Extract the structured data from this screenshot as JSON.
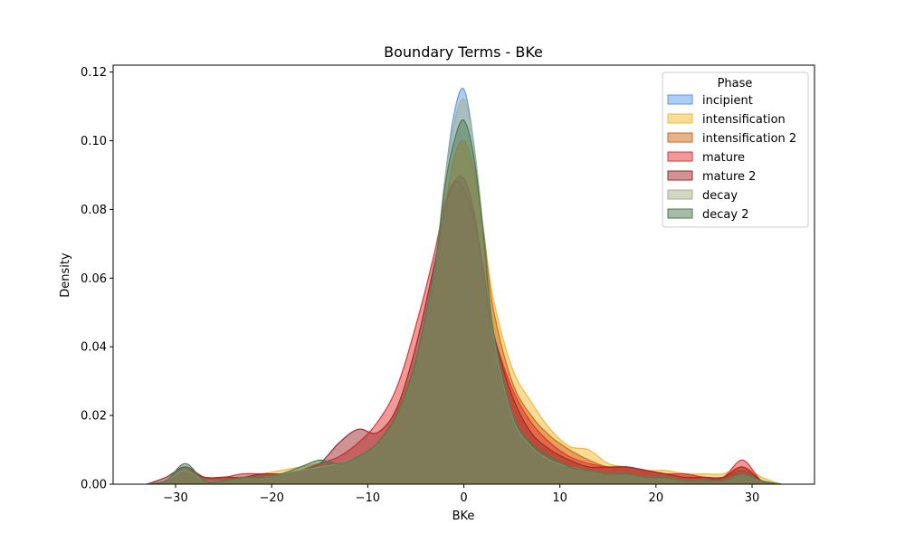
{
  "chart_data": {
    "type": "area",
    "title": "Boundary Terms - BKe",
    "xlabel": "BKe",
    "ylabel": "Density",
    "xlim": [
      -36.5,
      36.5
    ],
    "ylim": [
      0,
      0.122
    ],
    "xticks": [
      -30,
      -20,
      -10,
      0,
      10,
      20,
      30
    ],
    "yticks": [
      0.0,
      0.02,
      0.04,
      0.06,
      0.08,
      0.1,
      0.12
    ],
    "ytick_labels": [
      "0.00",
      "0.02",
      "0.04",
      "0.06",
      "0.08",
      "0.10",
      "0.12"
    ],
    "grid": false,
    "legend": {
      "title": "Phase",
      "placement": "top-right"
    },
    "x": [
      -33,
      -31,
      -29,
      -27,
      -25,
      -23,
      -21,
      -19,
      -17,
      -15,
      -13,
      -11,
      -9,
      -7,
      -5,
      -3,
      -2,
      -1,
      0,
      1,
      2,
      3,
      5,
      7,
      9,
      11,
      13,
      15,
      17,
      19,
      21,
      23,
      25,
      27,
      29,
      31,
      33
    ],
    "series": [
      {
        "name": "incipient",
        "color": "#5b9bea",
        "values": [
          0,
          0.001,
          0.005,
          0.001,
          0.001,
          0.002,
          0.003,
          0.003,
          0.004,
          0.006,
          0.006,
          0.008,
          0.012,
          0.02,
          0.035,
          0.062,
          0.088,
          0.108,
          0.115,
          0.1,
          0.072,
          0.045,
          0.02,
          0.011,
          0.007,
          0.005,
          0.004,
          0.003,
          0.003,
          0.002,
          0.002,
          0.001,
          0.001,
          0.002,
          0.003,
          0.001,
          0
        ]
      },
      {
        "name": "intensification",
        "color": "#f7b731",
        "values": [
          0,
          0.001,
          0.004,
          0.001,
          0.001,
          0.002,
          0.003,
          0.004,
          0.005,
          0.006,
          0.006,
          0.008,
          0.012,
          0.021,
          0.036,
          0.06,
          0.08,
          0.095,
          0.1,
          0.092,
          0.075,
          0.055,
          0.034,
          0.024,
          0.016,
          0.011,
          0.01,
          0.006,
          0.005,
          0.004,
          0.004,
          0.003,
          0.003,
          0.003,
          0.005,
          0.002,
          0
        ]
      },
      {
        "name": "intensification 2",
        "color": "#cd6a14",
        "values": [
          0,
          0.001,
          0.004,
          0.002,
          0.002,
          0.002,
          0.003,
          0.003,
          0.004,
          0.005,
          0.006,
          0.008,
          0.012,
          0.02,
          0.035,
          0.06,
          0.08,
          0.095,
          0.1,
          0.092,
          0.075,
          0.052,
          0.03,
          0.02,
          0.014,
          0.01,
          0.007,
          0.005,
          0.005,
          0.004,
          0.003,
          0.003,
          0.002,
          0.002,
          0.004,
          0.001,
          0
        ]
      },
      {
        "name": "mature",
        "color": "#df3434",
        "values": [
          0,
          0.001,
          0.004,
          0.002,
          0.002,
          0.003,
          0.003,
          0.003,
          0.004,
          0.006,
          0.008,
          0.012,
          0.018,
          0.028,
          0.046,
          0.068,
          0.082,
          0.088,
          0.086,
          0.078,
          0.062,
          0.045,
          0.028,
          0.018,
          0.012,
          0.008,
          0.006,
          0.005,
          0.005,
          0.004,
          0.003,
          0.003,
          0.002,
          0.002,
          0.007,
          0.001,
          0
        ]
      },
      {
        "name": "mature 2",
        "color": "#9e2a2b",
        "values": [
          0,
          0.002,
          0.005,
          0.002,
          0.002,
          0.002,
          0.003,
          0.003,
          0.004,
          0.006,
          0.012,
          0.016,
          0.015,
          0.022,
          0.04,
          0.065,
          0.08,
          0.088,
          0.089,
          0.08,
          0.063,
          0.045,
          0.026,
          0.015,
          0.01,
          0.007,
          0.005,
          0.005,
          0.005,
          0.004,
          0.003,
          0.002,
          0.002,
          0.002,
          0.005,
          0.001,
          0
        ]
      },
      {
        "name": "decay",
        "color": "#a6b08c",
        "values": [
          0,
          0.001,
          0.004,
          0.001,
          0.001,
          0.002,
          0.002,
          0.003,
          0.004,
          0.005,
          0.006,
          0.008,
          0.012,
          0.02,
          0.036,
          0.064,
          0.088,
          0.105,
          0.112,
          0.1,
          0.075,
          0.045,
          0.02,
          0.011,
          0.007,
          0.005,
          0.004,
          0.003,
          0.003,
          0.002,
          0.002,
          0.001,
          0.001,
          0.001,
          0.003,
          0.001,
          0
        ]
      },
      {
        "name": "decay 2",
        "color": "#4d7a4f",
        "values": [
          0,
          0.001,
          0.006,
          0.001,
          0.001,
          0.002,
          0.002,
          0.003,
          0.005,
          0.007,
          0.006,
          0.008,
          0.012,
          0.02,
          0.036,
          0.064,
          0.086,
          0.1,
          0.106,
          0.096,
          0.074,
          0.046,
          0.021,
          0.012,
          0.008,
          0.005,
          0.004,
          0.003,
          0.003,
          0.002,
          0.002,
          0.001,
          0.001,
          0.001,
          0.003,
          0.001,
          0
        ]
      }
    ]
  }
}
